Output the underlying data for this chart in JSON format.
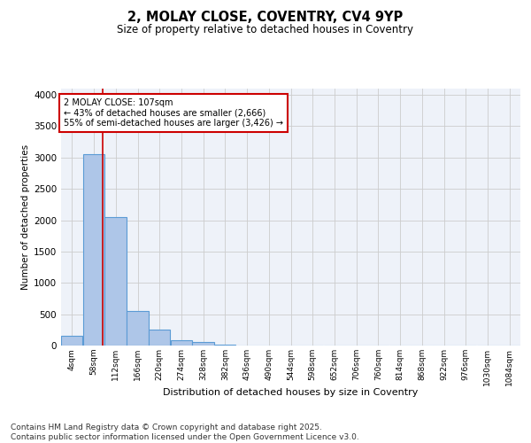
{
  "title_line1": "2, MOLAY CLOSE, COVENTRY, CV4 9YP",
  "title_line2": "Size of property relative to detached houses in Coventry",
  "xlabel": "Distribution of detached houses by size in Coventry",
  "ylabel": "Number of detached properties",
  "bin_labels": [
    "4sqm",
    "58sqm",
    "112sqm",
    "166sqm",
    "220sqm",
    "274sqm",
    "328sqm",
    "382sqm",
    "436sqm",
    "490sqm",
    "544sqm",
    "598sqm",
    "652sqm",
    "706sqm",
    "760sqm",
    "814sqm",
    "868sqm",
    "922sqm",
    "976sqm",
    "1030sqm",
    "1084sqm"
  ],
  "bar_values": [
    150,
    3050,
    2050,
    550,
    250,
    80,
    50,
    20,
    5,
    2,
    1,
    0,
    0,
    0,
    0,
    0,
    0,
    0,
    0,
    0,
    0
  ],
  "bar_color": "#aec6e8",
  "bar_edgecolor": "#5b9bd5",
  "bar_linewidth": 0.8,
  "vline_x": 107,
  "vline_color": "#cc0000",
  "vline_linewidth": 1.2,
  "annotation_text": "2 MOLAY CLOSE: 107sqm\n← 43% of detached houses are smaller (2,666)\n55% of semi-detached houses are larger (3,426) →",
  "annotation_fontsize": 7.0,
  "annotation_box_color": "#cc0000",
  "ylim": [
    0,
    4100
  ],
  "yticks": [
    0,
    500,
    1000,
    1500,
    2000,
    2500,
    3000,
    3500,
    4000
  ],
  "grid_color": "#cccccc",
  "background_color": "#eef2f9",
  "footer_text": "Contains HM Land Registry data © Crown copyright and database right 2025.\nContains public sector information licensed under the Open Government Licence v3.0.",
  "footer_fontsize": 6.5,
  "bin_width": 54
}
